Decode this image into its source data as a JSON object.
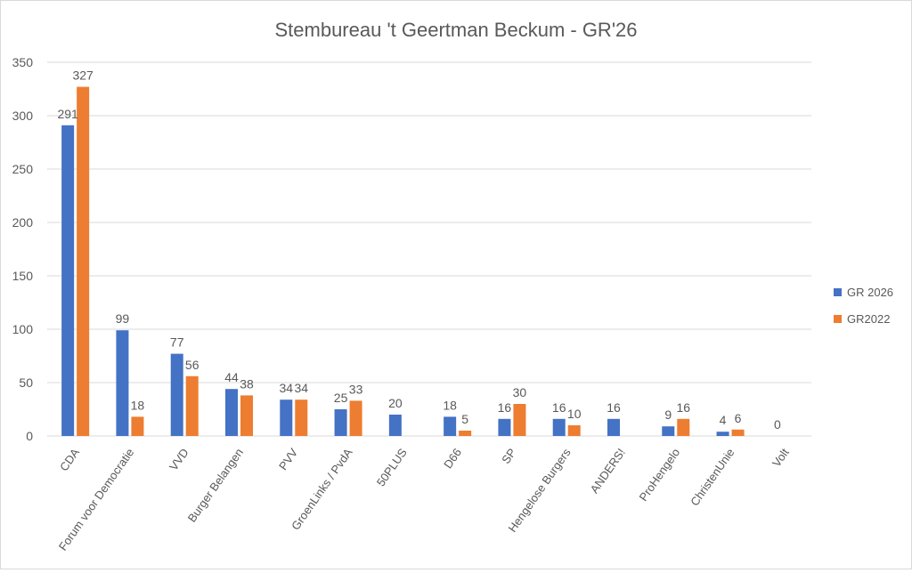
{
  "chart_data": {
    "type": "bar",
    "title": "Stembureau 't Geertman Beckum - GR'26",
    "categories": [
      "CDA",
      "Forum voor Democratie",
      "VVD",
      "Burger Belangen",
      "PVV",
      "GroenLinks / PvdA",
      "50PLUS",
      "D66",
      "SP",
      "Hengelose Burgers",
      "ANDERS!",
      "ProHengelo",
      "ChristenUnie",
      "Volt"
    ],
    "series": [
      {
        "name": "GR 2026",
        "color": "#4472c4",
        "values": [
          291,
          99,
          77,
          44,
          34,
          25,
          20,
          18,
          16,
          16,
          16,
          9,
          4,
          0
        ]
      },
      {
        "name": "GR2022",
        "color": "#ed7d31",
        "values": [
          327,
          18,
          56,
          38,
          34,
          33,
          null,
          5,
          30,
          10,
          null,
          16,
          6,
          null
        ]
      }
    ],
    "ylim": [
      0,
      350
    ],
    "yticks": [
      0,
      50,
      100,
      150,
      200,
      250,
      300,
      350
    ],
    "grid": true,
    "legend": "right",
    "xlabel": "",
    "ylabel": ""
  }
}
